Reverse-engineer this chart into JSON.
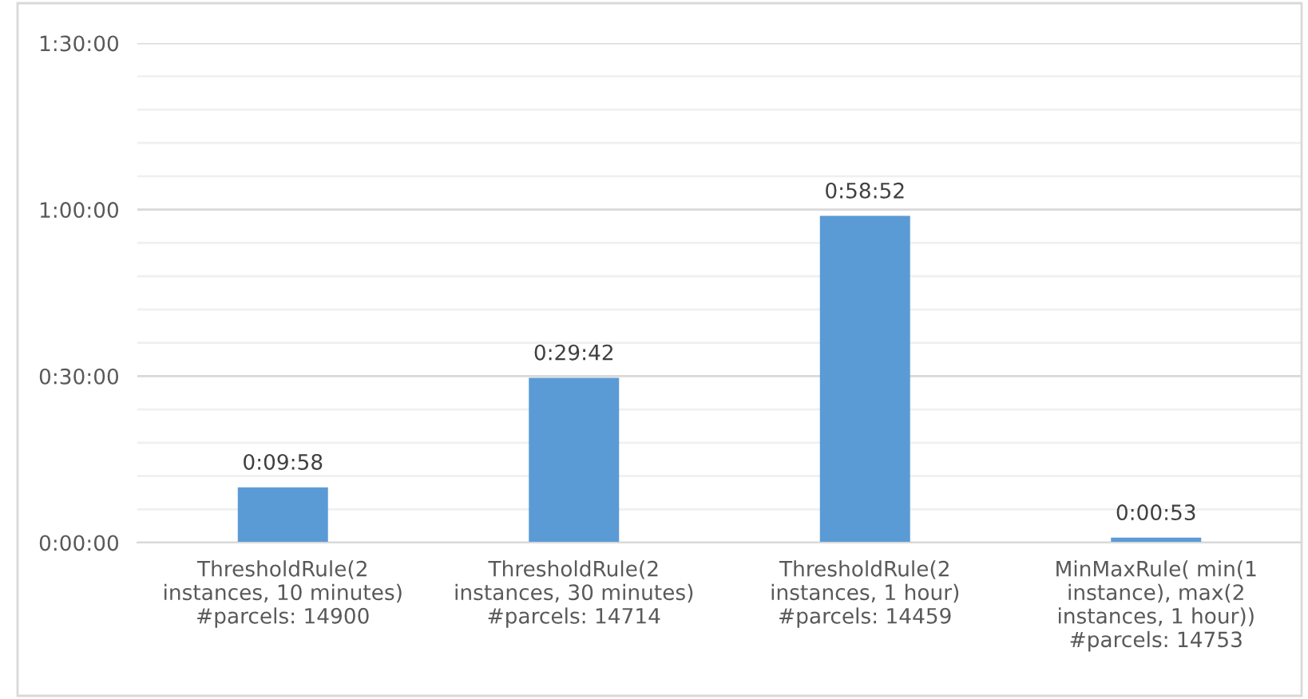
{
  "chart_data": {
    "type": "bar",
    "categories": [
      "ThresholdRule(2\ninstances, 10 minutes)\n#parcels: 14900",
      "ThresholdRule(2\ninstances, 30 minutes)\n#parcels: 14714",
      "ThresholdRule(2\ninstances, 1 hour)\n#parcels: 14459",
      "MinMaxRule( min(1\ninstance), max(2\ninstances, 1 hour))\n#parcels: 14753"
    ],
    "values": [
      598,
      1782,
      3532,
      53
    ],
    "value_labels": [
      "0:09:58",
      "0:29:42",
      "0:58:52",
      "0:00:53"
    ],
    "color": "#5b9bd5",
    "ylim": [
      0,
      5400
    ],
    "yticks": [
      {
        "value": 0,
        "label": "0:00:00"
      },
      {
        "value": 360,
        "label": null
      },
      {
        "value": 720,
        "label": null
      },
      {
        "value": 1080,
        "label": null
      },
      {
        "value": 1440,
        "label": null
      },
      {
        "value": 1800,
        "label": "0:30:00"
      },
      {
        "value": 2160,
        "label": null
      },
      {
        "value": 2520,
        "label": null
      },
      {
        "value": 2880,
        "label": null
      },
      {
        "value": 3240,
        "label": null
      },
      {
        "value": 3600,
        "label": "1:00:00"
      },
      {
        "value": 3960,
        "label": null
      },
      {
        "value": 4320,
        "label": null
      },
      {
        "value": 4680,
        "label": null
      },
      {
        "value": 5040,
        "label": null
      },
      {
        "value": 5400,
        "label": "1:30:00"
      }
    ],
    "grid": "y"
  }
}
